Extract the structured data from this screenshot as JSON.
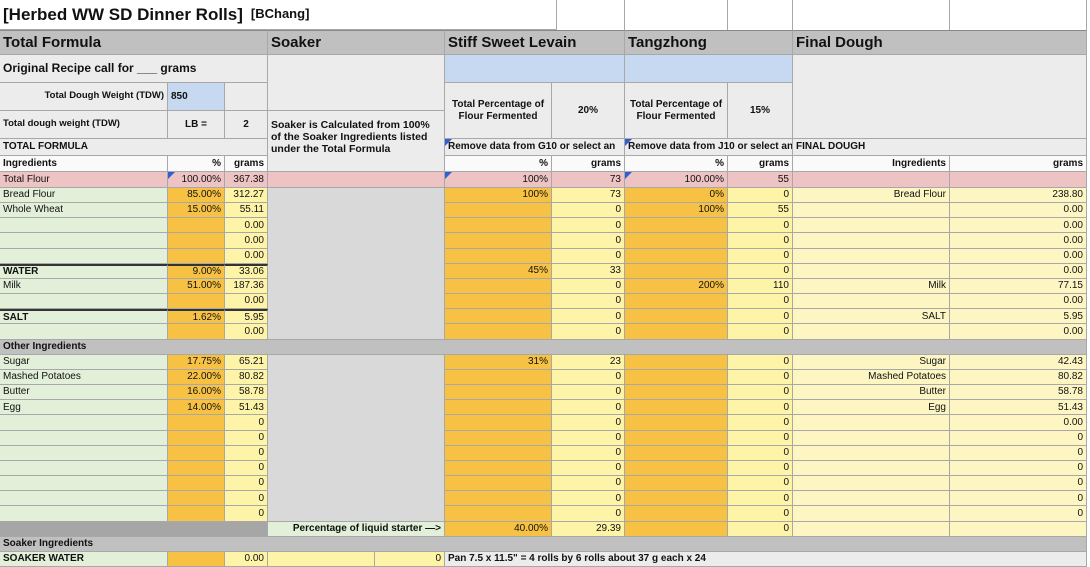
{
  "title": "[Herbed WW SD Dinner Rolls]",
  "author": "[BChang]",
  "sections": [
    "Total Formula",
    "Soaker",
    "Stiff Sweet Levain",
    "Tangzhong",
    "Final Dough"
  ],
  "setup": {
    "original_recipe": "Original Recipe call for ___ grams",
    "tdw_label": "Total Dough Weight (TDW)",
    "tdw_value": "850",
    "tdw_lb_label": "Total dough weight (TDW)",
    "lb_label": "LB =",
    "lb_value": "2",
    "soaker_note": "Soaker is Calculated from 100% of the Soaker Ingredients listed under the Total Formula",
    "levain_pct_label": "Total Percentage of Flour Fermented",
    "levain_pct": "20%",
    "tangzhong_pct_label": "Total Percentage of Flour Fermented",
    "tangzhong_pct": "15%",
    "total_formula_label": "TOTAL FORMULA",
    "levain_note": "Remove data from G10 or select an",
    "tangzhong_note": "Remove data from J10 or select an",
    "final_dough_label": "FINAL DOUGH"
  },
  "column_headers": [
    "Ingredients",
    "%",
    "grams",
    "%",
    "grams",
    "%",
    "grams",
    "Ingredients",
    "grams"
  ],
  "total_flour": [
    "Total Flour",
    "100.00%",
    "367.38",
    "100%",
    "73",
    "100.00%",
    "55",
    null,
    null
  ],
  "flours": [
    [
      "Bread Flour",
      "85.00%",
      "312.27",
      "100%",
      "73",
      "0%",
      "0",
      "Bread Flour",
      "238.80"
    ],
    [
      "Whole Wheat",
      "15.00%",
      "55.11",
      null,
      "0",
      "100%",
      "55",
      null,
      "0.00"
    ],
    [
      null,
      null,
      "0.00",
      null,
      "0",
      null,
      "0",
      null,
      "0.00"
    ],
    [
      null,
      null,
      "0.00",
      null,
      "0",
      null,
      "0",
      null,
      "0.00"
    ],
    [
      null,
      null,
      "0.00",
      null,
      "0",
      null,
      "0",
      null,
      "0.00"
    ]
  ],
  "liquids": [
    [
      "WATER",
      "9.00%",
      "33.06",
      "45%",
      "33",
      null,
      "0",
      null,
      "0.00"
    ],
    [
      "Milk",
      "51.00%",
      "187.36",
      null,
      "0",
      "200%",
      "110",
      "Milk",
      "77.15"
    ],
    [
      null,
      null,
      "0.00",
      null,
      "0",
      null,
      "0",
      null,
      "0.00"
    ]
  ],
  "salts": [
    [
      "SALT",
      "1.62%",
      "5.95",
      null,
      "0",
      null,
      "0",
      "SALT",
      "5.95"
    ],
    [
      null,
      null,
      "0.00",
      null,
      "0",
      null,
      "0",
      null,
      "0.00"
    ]
  ],
  "other_heading": "Other Ingredients",
  "others": [
    [
      "Sugar",
      "17.75%",
      "65.21",
      "31%",
      "23",
      null,
      "0",
      "Sugar",
      "42.43"
    ],
    [
      "Mashed Potatoes",
      "22.00%",
      "80.82",
      null,
      "0",
      null,
      "0",
      "Mashed Potatoes",
      "80.82"
    ],
    [
      "Butter",
      "16.00%",
      "58.78",
      null,
      "0",
      null,
      "0",
      "Butter",
      "58.78"
    ],
    [
      "Egg",
      "14.00%",
      "51.43",
      null,
      "0",
      null,
      "0",
      "Egg",
      "51.43"
    ],
    [
      null,
      null,
      "0",
      null,
      "0",
      null,
      "0",
      null,
      "0.00"
    ],
    [
      null,
      null,
      "0",
      null,
      "0",
      null,
      "0",
      null,
      "0"
    ],
    [
      null,
      null,
      "0",
      null,
      "0",
      null,
      "0",
      null,
      "0"
    ],
    [
      null,
      null,
      "0",
      null,
      "0",
      null,
      "0",
      null,
      "0"
    ],
    [
      null,
      null,
      "0",
      null,
      "0",
      null,
      "0",
      null,
      "0"
    ],
    [
      null,
      null,
      "0",
      null,
      "0",
      null,
      "0",
      null,
      "0"
    ],
    [
      null,
      null,
      "0",
      null,
      "0",
      null,
      "0",
      null,
      "0"
    ]
  ],
  "starter": {
    "label": "Percentage of liquid starter —>",
    "percent": "40.00%",
    "grams": "29.39",
    "tangzhong": "0"
  },
  "soaker_heading": "Soaker Ingredients",
  "soaker_row": {
    "name": "SOAKER WATER",
    "grams": "0.00",
    "soaker": "0",
    "note": "Pan 7.5 x 11.5\" = 4 rolls by 6 rolls about 37 g each x 24"
  }
}
